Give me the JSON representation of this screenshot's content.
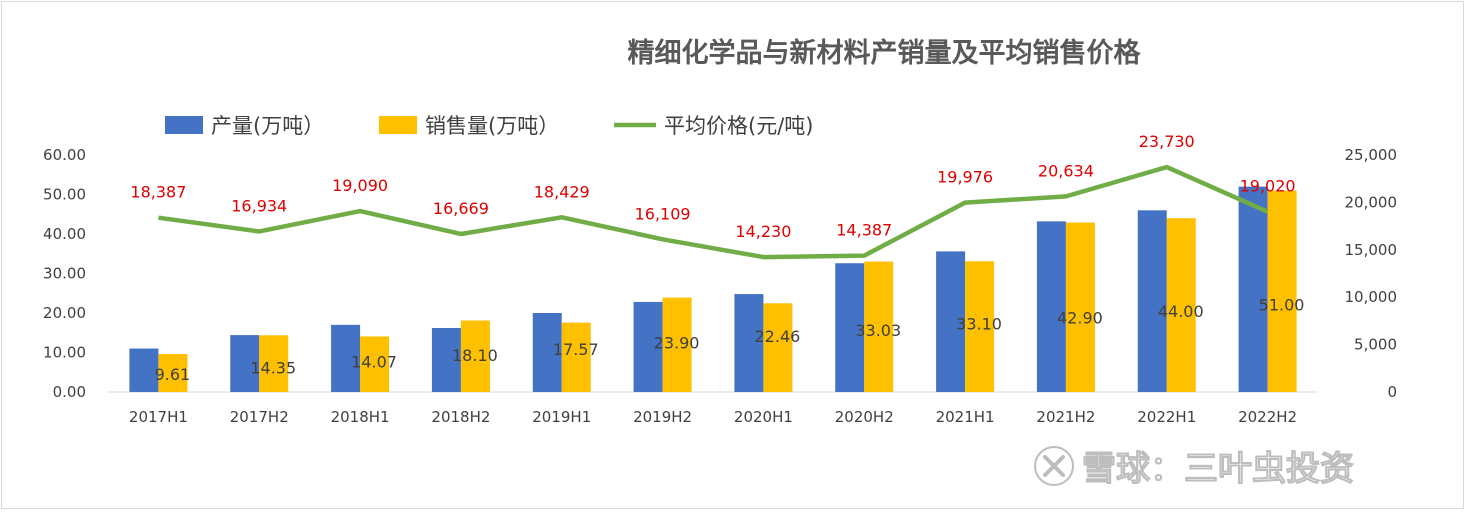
{
  "chart_data": {
    "type": "bar",
    "title": "精细化学品与新材料产销量及平均销售价格",
    "categories": [
      "2017H1",
      "2017H2",
      "2018H1",
      "2018H2",
      "2019H1",
      "2019H2",
      "2020H1",
      "2020H2",
      "2021H1",
      "2021H2",
      "2022H1",
      "2022H2"
    ],
    "series": [
      {
        "name": "产量(万吨）",
        "kind": "bar",
        "axis": "left",
        "color": "#4472c4",
        "values": [
          11.0,
          14.4,
          17.0,
          16.2,
          20.0,
          22.8,
          24.8,
          32.6,
          35.6,
          43.2,
          46.0,
          52.0
        ]
      },
      {
        "name": "销售量(万吨）",
        "kind": "bar",
        "axis": "left",
        "color": "#ffc000",
        "values": [
          9.61,
          14.35,
          14.07,
          18.1,
          17.57,
          23.9,
          22.46,
          33.03,
          33.1,
          42.9,
          44.0,
          51.0
        ],
        "labels": [
          "9.61",
          "14.35",
          "14.07",
          "18.10",
          "17.57",
          "23.90",
          "22.46",
          "33.03",
          "33.10",
          "42.90",
          "44.00",
          "51.00"
        ]
      },
      {
        "name": "平均价格(元/吨)",
        "kind": "line",
        "axis": "right",
        "color": "#70ad47",
        "values": [
          18387,
          16934,
          19090,
          16669,
          18429,
          16109,
          14230,
          14387,
          19976,
          20634,
          23730,
          19020
        ],
        "labels": [
          "18,387",
          "16,934",
          "19,090",
          "16,669",
          "18,429",
          "16,109",
          "14,230",
          "14,387",
          "19,976",
          "20,634",
          "23,730",
          "19,020"
        ]
      }
    ],
    "y_left": {
      "min": 0,
      "max": 60,
      "ticks": [
        "0.00",
        "10.00",
        "20.00",
        "30.00",
        "40.00",
        "50.00",
        "60.00"
      ]
    },
    "y_right": {
      "min": 0,
      "max": 25000,
      "ticks": [
        "0",
        "5,000",
        "10,000",
        "15,000",
        "20,000",
        "25,000"
      ]
    },
    "legend": "top-left",
    "grid": false,
    "label_color": "#e00000"
  },
  "watermark": {
    "text": "雪球：三叶虫投资",
    "icon": "xueqiu-logo-icon"
  }
}
